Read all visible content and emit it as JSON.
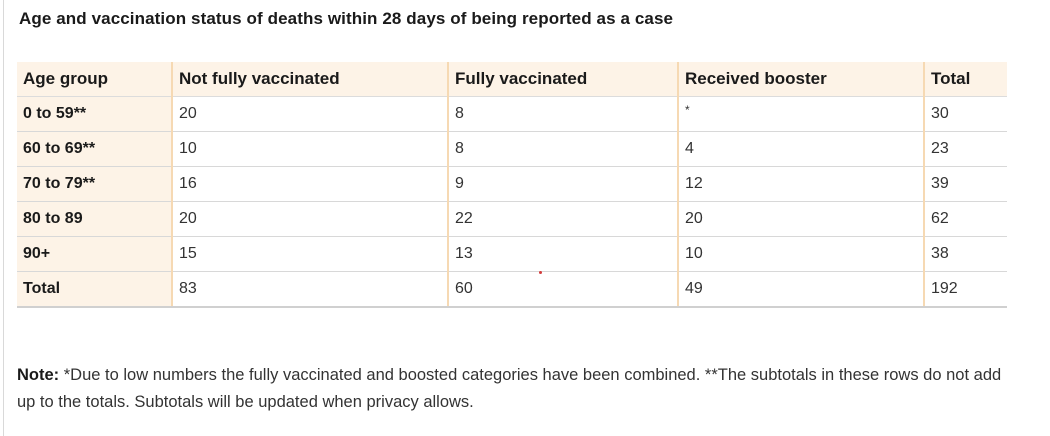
{
  "title": "Age and vaccination status of deaths within 28 days of being reported as a case",
  "table": {
    "headers": [
      "Age group",
      "Not fully vaccinated",
      "Fully vaccinated",
      "Received booster",
      "Total"
    ],
    "rows": [
      [
        "0 to 59**",
        "20",
        "8",
        "*",
        "30"
      ],
      [
        "60 to 69**",
        "10",
        "8",
        "4",
        "23"
      ],
      [
        "70 to 79**",
        "16",
        "9",
        "12",
        "39"
      ],
      [
        "80 to 89",
        "20",
        "22",
        "20",
        "62"
      ],
      [
        "90+",
        "15",
        "13",
        "10",
        "38"
      ],
      [
        "Total",
        "83",
        "60",
        "49",
        "192"
      ]
    ]
  },
  "note": {
    "label": "Note:",
    "text": " *Due to low numbers the fully vaccinated and boosted categories have been combined. **The subtotals in these rows do not add up to the totals. Subtotals will be updated when privacy allows."
  },
  "colors": {
    "header_bg": "#fdf3e7",
    "column_divider": "#f6d9b3",
    "row_border": "#d8d8d8",
    "stray_mark": "#d33c3c"
  }
}
